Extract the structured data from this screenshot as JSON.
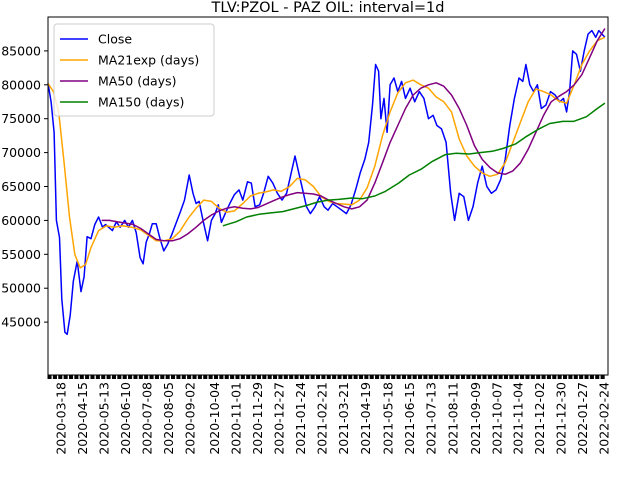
{
  "chart_data": {
    "type": "line",
    "title": "TLV:PZOL - PAZ OIL: interval=1d",
    "xlabel": "",
    "ylabel": "",
    "x_range": [
      "2020-03-01",
      "2022-03-01"
    ],
    "ylim": [
      37200,
      90000
    ],
    "y_ticks": [
      45000,
      50000,
      55000,
      60000,
      65000,
      70000,
      75000,
      80000,
      85000
    ],
    "y_tick_labels": [
      "45000",
      "50000",
      "55000",
      "60000",
      "65000",
      "70000",
      "75000",
      "80000",
      "85000"
    ],
    "x_ticks": [
      "2020-03-18",
      "2020-04-15",
      "2020-05-13",
      "2020-06-10",
      "2020-07-08",
      "2020-08-05",
      "2020-09-02",
      "2020-10-04",
      "2020-11-01",
      "2020-11-29",
      "2020-12-27",
      "2021-01-24",
      "2021-02-21",
      "2021-03-21",
      "2021-04-19",
      "2021-05-18",
      "2021-06-15",
      "2021-07-13",
      "2021-08-11",
      "2021-09-09",
      "2021-10-07",
      "2021-11-04",
      "2021-12-02",
      "2021-12-30",
      "2022-01-27",
      "2022-02-24"
    ],
    "grid": false,
    "legend_position": "top-left",
    "series": [
      {
        "name": "Close",
        "color": "#0000ff",
        "x": [
          "2020-03-01",
          "2020-03-05",
          "2020-03-09",
          "2020-03-12",
          "2020-03-16",
          "2020-03-19",
          "2020-03-23",
          "2020-03-26",
          "2020-03-30",
          "2020-04-03",
          "2020-04-08",
          "2020-04-13",
          "2020-04-17",
          "2020-04-21",
          "2020-04-26",
          "2020-05-01",
          "2020-05-06",
          "2020-05-11",
          "2020-05-15",
          "2020-05-19",
          "2020-05-24",
          "2020-05-29",
          "2020-06-03",
          "2020-06-09",
          "2020-06-14",
          "2020-06-19",
          "2020-06-24",
          "2020-06-29",
          "2020-07-03",
          "2020-07-07",
          "2020-07-11",
          "2020-07-15",
          "2020-07-20",
          "2020-07-25",
          "2020-07-30",
          "2020-08-04",
          "2020-08-09",
          "2020-08-15",
          "2020-08-21",
          "2020-08-26",
          "2020-09-01",
          "2020-09-06",
          "2020-09-10",
          "2020-09-14",
          "2020-09-19",
          "2020-09-25",
          "2020-09-30",
          "2020-10-05",
          "2020-10-09",
          "2020-10-13",
          "2020-10-18",
          "2020-10-24",
          "2020-10-30",
          "2020-11-05",
          "2020-11-10",
          "2020-11-16",
          "2020-11-21",
          "2020-11-26",
          "2020-12-02",
          "2020-12-07",
          "2020-12-13",
          "2020-12-19",
          "2020-12-25",
          "2020-12-31",
          "2021-01-06",
          "2021-01-12",
          "2021-01-17",
          "2021-01-22",
          "2021-01-27",
          "2021-02-01",
          "2021-02-06",
          "2021-02-12",
          "2021-02-18",
          "2021-02-24",
          "2021-03-01",
          "2021-03-07",
          "2021-03-13",
          "2021-03-19",
          "2021-03-25",
          "2021-03-31",
          "2021-04-06",
          "2021-04-12",
          "2021-04-18",
          "2021-04-23",
          "2021-04-28",
          "2021-05-02",
          "2021-05-06",
          "2021-05-09",
          "2021-05-13",
          "2021-05-17",
          "2021-05-21",
          "2021-05-26",
          "2021-05-31",
          "2021-06-05",
          "2021-06-10",
          "2021-06-16",
          "2021-06-22",
          "2021-06-28",
          "2021-07-04",
          "2021-07-10",
          "2021-07-16",
          "2021-07-21",
          "2021-07-27",
          "2021-08-02",
          "2021-08-08",
          "2021-08-13",
          "2021-08-19",
          "2021-08-25",
          "2021-08-31",
          "2021-09-06",
          "2021-09-12",
          "2021-09-18",
          "2021-09-24",
          "2021-09-30",
          "2021-10-06",
          "2021-10-12",
          "2021-10-18",
          "2021-10-24",
          "2021-10-30",
          "2021-11-05",
          "2021-11-10",
          "2021-11-14",
          "2021-11-19",
          "2021-11-24",
          "2021-11-29",
          "2021-12-04",
          "2021-12-10",
          "2021-12-16",
          "2021-12-22",
          "2021-12-28",
          "2022-01-02",
          "2022-01-06",
          "2022-01-10",
          "2022-01-14",
          "2022-01-19",
          "2022-01-24",
          "2022-01-29",
          "2022-02-03",
          "2022-02-08",
          "2022-02-13",
          "2022-02-17",
          "2022-02-21",
          "2022-02-25"
        ],
        "values": [
          80200,
          77500,
          73000,
          60000,
          57500,
          48400,
          43500,
          43200,
          46000,
          51000,
          54000,
          49500,
          51700,
          57600,
          57300,
          59400,
          60500,
          59000,
          59400,
          59000,
          58500,
          59800,
          59000,
          60000,
          59000,
          60000,
          58200,
          54500,
          53600,
          56800,
          58000,
          59500,
          59500,
          57300,
          55500,
          56500,
          57800,
          59600,
          61400,
          63000,
          66700,
          64000,
          62500,
          62800,
          60000,
          57000,
          60000,
          61000,
          62300,
          59700,
          61000,
          62500,
          63800,
          64500,
          63000,
          65700,
          65500,
          62000,
          62300,
          64000,
          66500,
          65500,
          64000,
          63000,
          64000,
          67000,
          69500,
          67000,
          64500,
          62000,
          61000,
          62000,
          63500,
          62000,
          61500,
          62500,
          62000,
          61500,
          61000,
          62300,
          64500,
          67000,
          69000,
          71500,
          77000,
          83000,
          82000,
          75000,
          78000,
          73000,
          80000,
          81000,
          79000,
          80500,
          78000,
          79500,
          77500,
          79000,
          78000,
          75000,
          75500,
          74000,
          73500,
          71500,
          64000,
          60000,
          64000,
          63500,
          60000,
          62000,
          65500,
          68000,
          65000,
          64000,
          64500,
          66000,
          69000,
          74000,
          78000,
          81000,
          80500,
          83000,
          80000,
          79000,
          80000,
          76500,
          77000,
          79000,
          78500,
          77500,
          78000,
          76000,
          79000,
          85000,
          84500,
          82000,
          85000,
          87500,
          88000,
          87000,
          88000,
          87500,
          87000
        ],
        "line_width": 1.5
      },
      {
        "name": "MA21exp (days)",
        "color": "#ffa500",
        "x": [
          "2020-03-01",
          "2020-03-08",
          "2020-03-15",
          "2020-03-22",
          "2020-03-29",
          "2020-04-05",
          "2020-04-12",
          "2020-04-19",
          "2020-04-26",
          "2020-05-06",
          "2020-05-16",
          "2020-05-26",
          "2020-06-06",
          "2020-06-18",
          "2020-06-30",
          "2020-07-10",
          "2020-07-20",
          "2020-07-30",
          "2020-08-10",
          "2020-08-20",
          "2020-08-30",
          "2020-09-10",
          "2020-09-20",
          "2020-09-30",
          "2020-10-10",
          "2020-10-20",
          "2020-10-30",
          "2020-11-10",
          "2020-11-20",
          "2020-11-30",
          "2020-12-10",
          "2020-12-20",
          "2020-12-30",
          "2021-01-10",
          "2021-01-20",
          "2021-01-30",
          "2021-02-10",
          "2021-02-20",
          "2021-03-02",
          "2021-03-12",
          "2021-03-22",
          "2021-04-01",
          "2021-04-11",
          "2021-04-21",
          "2021-05-01",
          "2021-05-11",
          "2021-05-21",
          "2021-05-31",
          "2021-06-10",
          "2021-06-20",
          "2021-06-30",
          "2021-07-10",
          "2021-07-20",
          "2021-07-30",
          "2021-08-09",
          "2021-08-19",
          "2021-08-29",
          "2021-09-08",
          "2021-09-18",
          "2021-09-28",
          "2021-10-08",
          "2021-10-18",
          "2021-10-28",
          "2021-11-07",
          "2021-11-17",
          "2021-11-27",
          "2021-12-07",
          "2021-12-17",
          "2021-12-27",
          "2022-01-06",
          "2022-01-16",
          "2022-01-26",
          "2022-02-05",
          "2022-02-15",
          "2022-02-25"
        ],
        "values": [
          80200,
          79000,
          76000,
          68500,
          60500,
          55000,
          53000,
          53500,
          56000,
          58500,
          59200,
          59000,
          59200,
          59000,
          58600,
          57800,
          57000,
          57000,
          57300,
          58400,
          60200,
          61800,
          63000,
          62800,
          61800,
          61200,
          61400,
          62500,
          63600,
          64000,
          64200,
          64500,
          64300,
          65000,
          66200,
          66000,
          65000,
          63500,
          62800,
          62500,
          62400,
          62300,
          63000,
          64800,
          68000,
          72500,
          76000,
          78800,
          80300,
          80700,
          80000,
          79500,
          78200,
          77500,
          76000,
          72000,
          69500,
          68000,
          67000,
          66500,
          66800,
          68500,
          71500,
          74500,
          77500,
          79400,
          79000,
          78500,
          77600,
          77300,
          80000,
          83000,
          85000,
          86500,
          87000
        ],
        "line_width": 1.5
      },
      {
        "name": "MA50 (days)",
        "color": "#800080",
        "x": [
          "2020-05-10",
          "2020-05-20",
          "2020-05-30",
          "2020-06-10",
          "2020-06-20",
          "2020-06-30",
          "2020-07-10",
          "2020-07-20",
          "2020-07-30",
          "2020-08-10",
          "2020-08-20",
          "2020-08-30",
          "2020-09-10",
          "2020-09-20",
          "2020-09-30",
          "2020-10-10",
          "2020-10-20",
          "2020-10-30",
          "2020-11-10",
          "2020-11-20",
          "2020-11-30",
          "2020-12-10",
          "2020-12-20",
          "2020-12-30",
          "2021-01-10",
          "2021-01-20",
          "2021-01-30",
          "2021-02-10",
          "2021-02-20",
          "2021-03-02",
          "2021-03-12",
          "2021-03-22",
          "2021-04-01",
          "2021-04-11",
          "2021-04-21",
          "2021-05-01",
          "2021-05-11",
          "2021-05-21",
          "2021-05-31",
          "2021-06-10",
          "2021-06-20",
          "2021-06-30",
          "2021-07-10",
          "2021-07-20",
          "2021-07-30",
          "2021-08-09",
          "2021-08-19",
          "2021-08-29",
          "2021-09-08",
          "2021-09-18",
          "2021-09-28",
          "2021-10-08",
          "2021-10-18",
          "2021-10-28",
          "2021-11-07",
          "2021-11-17",
          "2021-11-27",
          "2021-12-07",
          "2021-12-17",
          "2021-12-27",
          "2022-01-06",
          "2022-01-16",
          "2022-01-26",
          "2022-02-05",
          "2022-02-15",
          "2022-02-25"
        ],
        "values": [
          60000,
          60000,
          59800,
          59600,
          59400,
          58800,
          58000,
          57200,
          57000,
          57000,
          57300,
          58000,
          59000,
          60000,
          60800,
          61400,
          61800,
          62000,
          61800,
          61700,
          61900,
          62400,
          62900,
          63400,
          63800,
          64100,
          64000,
          63900,
          63600,
          63000,
          62500,
          62000,
          61700,
          62000,
          63000,
          65500,
          68500,
          71500,
          74000,
          76500,
          78500,
          79500,
          80000,
          80300,
          79800,
          78500,
          76500,
          74000,
          71000,
          69000,
          67800,
          67000,
          66800,
          67300,
          68500,
          70500,
          73000,
          75500,
          77500,
          78300,
          79000,
          80000,
          81500,
          84000,
          86500,
          88300
        ],
        "line_width": 1.5
      },
      {
        "name": "MA150 (days)",
        "color": "#008000",
        "x": [
          "2020-10-15",
          "2020-11-01",
          "2020-11-15",
          "2020-12-01",
          "2020-12-15",
          "2021-01-01",
          "2021-01-15",
          "2021-02-01",
          "2021-02-15",
          "2021-03-01",
          "2021-03-15",
          "2021-04-01",
          "2021-04-15",
          "2021-05-01",
          "2021-05-15",
          "2021-06-01",
          "2021-06-15",
          "2021-07-01",
          "2021-07-15",
          "2021-08-01",
          "2021-08-15",
          "2021-09-01",
          "2021-09-15",
          "2021-10-01",
          "2021-10-15",
          "2021-11-01",
          "2021-11-15",
          "2021-12-01",
          "2021-12-15",
          "2022-01-01",
          "2022-01-15",
          "2022-02-01",
          "2022-02-15",
          "2022-02-25"
        ],
        "values": [
          59200,
          59800,
          60500,
          60900,
          61100,
          61300,
          61700,
          62200,
          62700,
          63000,
          63100,
          63300,
          63200,
          63600,
          64300,
          65500,
          66700,
          67600,
          68700,
          69700,
          69900,
          69800,
          70000,
          70200,
          70600,
          71300,
          72400,
          73500,
          74300,
          74600,
          74600,
          75300,
          76500,
          77300
        ],
        "line_width": 1.5
      }
    ]
  }
}
